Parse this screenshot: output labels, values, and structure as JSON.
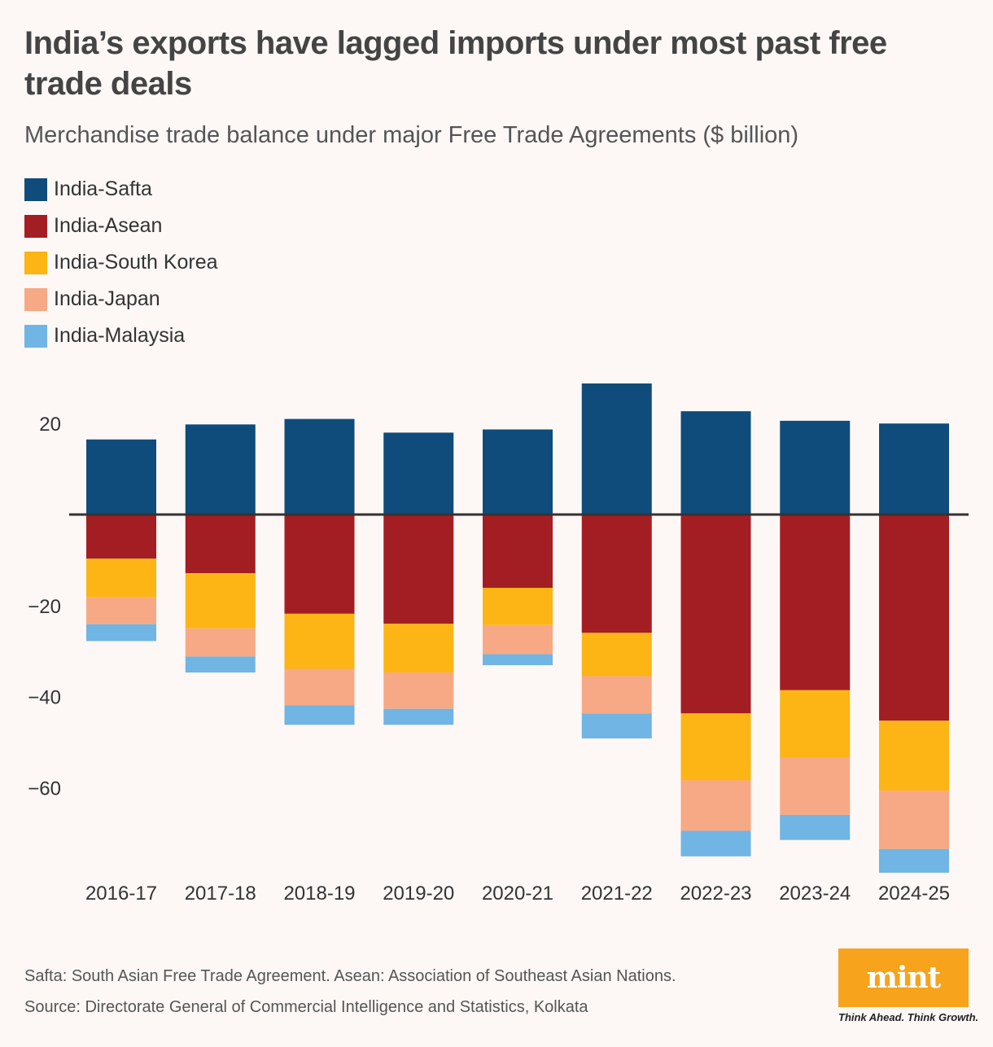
{
  "title": "India’s exports have lagged imports under most past free trade deals",
  "subtitle": "Merchandise trade balance under major Free Trade Agreements ($ billion)",
  "legend": [
    {
      "label": "India-Safta",
      "color": "#0f4c7b"
    },
    {
      "label": "India-Asean",
      "color": "#a31e22"
    },
    {
      "label": "India-South Korea",
      "color": "#fcb515"
    },
    {
      "label": "India-Japan",
      "color": "#f6a984"
    },
    {
      "label": "India-Malaysia",
      "color": "#70b5e3"
    }
  ],
  "footnote": "Safta: South Asian Free Trade Agreement. Asean: Association of Southeast Asian Nations.",
  "source": "Source: Directorate General of Commercial Intelligence and Statistics, Kolkata",
  "logo": {
    "text": "mint",
    "tagline": "Think Ahead. Think Growth."
  },
  "chart_data": {
    "type": "bar",
    "stacked": true,
    "categories": [
      "2016-17",
      "2017-18",
      "2018-19",
      "2019-20",
      "2020-21",
      "2021-22",
      "2022-23",
      "2023-24",
      "2024-25"
    ],
    "series": [
      {
        "name": "India-Safta",
        "color": "#0f4c7b",
        "values": [
          16.5,
          19.8,
          21.0,
          18.0,
          18.7,
          28.8,
          22.7,
          20.6,
          20.0
        ]
      },
      {
        "name": "India-Asean",
        "color": "#a31e22",
        "values": [
          -9.7,
          -12.9,
          -21.8,
          -24.0,
          -16.1,
          -26.0,
          -43.7,
          -38.6,
          -45.3
        ]
      },
      {
        "name": "India-South Korea",
        "color": "#fcb515",
        "values": [
          -8.5,
          -12.1,
          -12.1,
          -10.7,
          -8.2,
          -9.5,
          -14.7,
          -14.8,
          -15.4
        ]
      },
      {
        "name": "India-Japan",
        "color": "#f6a984",
        "values": [
          -5.9,
          -6.2,
          -8.0,
          -8.0,
          -6.4,
          -8.2,
          -11.1,
          -12.6,
          -12.8
        ]
      },
      {
        "name": "India-Malaysia",
        "color": "#70b5e3",
        "values": [
          -3.7,
          -3.5,
          -4.3,
          -3.5,
          -2.4,
          -5.5,
          -5.6,
          -5.5,
          -5.2
        ]
      }
    ],
    "yticks": [
      20,
      -20,
      -40,
      -60
    ],
    "ytick_labels": [
      "20",
      "−20",
      "−40",
      "−60"
    ],
    "ylim": [
      -80,
      30
    ],
    "xlabel": "",
    "ylabel": "",
    "grid": false
  }
}
